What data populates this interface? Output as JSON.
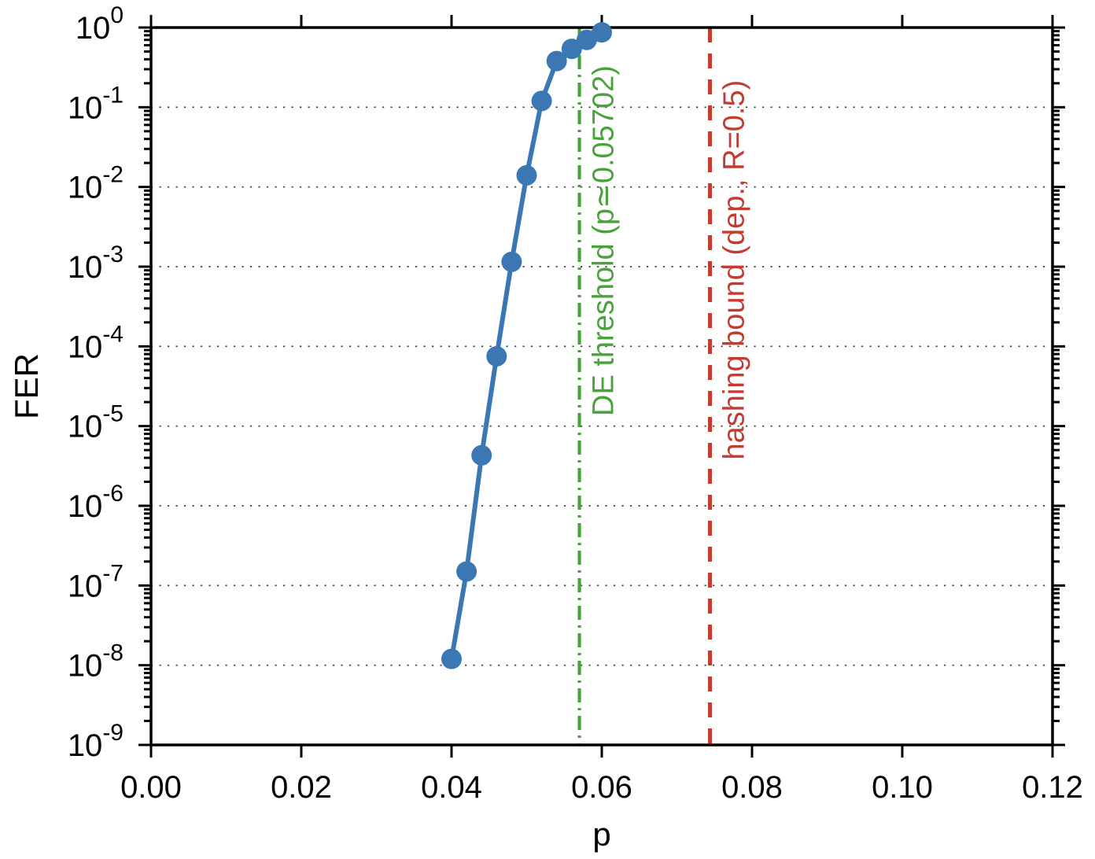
{
  "chart_data": {
    "type": "line",
    "title": "",
    "xlabel": "p",
    "ylabel": "FER",
    "xlim": [
      0,
      0.12
    ],
    "x_tick_values": [
      0.0,
      0.02,
      0.04,
      0.06,
      0.08,
      0.1,
      0.12
    ],
    "x_tick_labels": [
      "0.00",
      "0.02",
      "0.04",
      "0.06",
      "0.08",
      "0.10",
      "0.12"
    ],
    "y_axis": {
      "scale": "log10",
      "max_exp": 0,
      "min_exp": -9
    },
    "grid": {
      "horizontal_dotted_per_decade": true,
      "vertical": false
    },
    "legend": "none",
    "series": [
      {
        "name": "fer-simulation-curve",
        "color": "#3b77b3",
        "marker": "filled-circle",
        "points": [
          {
            "x": 0.04,
            "y": 1.2e-08
          },
          {
            "x": 0.042,
            "y": 1.5e-07
          },
          {
            "x": 0.044,
            "y": 4.3e-06
          },
          {
            "x": 0.046,
            "y": 7.5e-05
          },
          {
            "x": 0.048,
            "y": 0.00115
          },
          {
            "x": 0.05,
            "y": 0.014
          },
          {
            "x": 0.052,
            "y": 0.12
          },
          {
            "x": 0.054,
            "y": 0.38
          },
          {
            "x": 0.056,
            "y": 0.54
          },
          {
            "x": 0.058,
            "y": 0.7
          },
          {
            "x": 0.06,
            "y": 0.87
          }
        ]
      }
    ],
    "annotations": [
      {
        "name": "de-threshold",
        "type": "vline",
        "x": 0.05702,
        "style": "dash-dot",
        "color": "#48a33a",
        "label": "DE threshold (p≃0.05702)"
      },
      {
        "name": "hashing-bound",
        "type": "vline",
        "x": 0.0744,
        "style": "dashed",
        "color": "#c43c31",
        "label": "hashing bound (dep., R=0.5)"
      }
    ]
  }
}
